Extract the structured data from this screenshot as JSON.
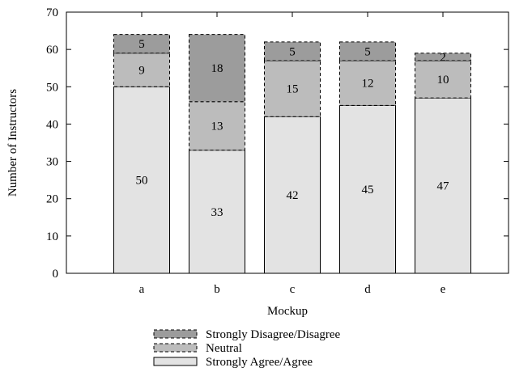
{
  "chart_data": {
    "type": "bar",
    "stacked": true,
    "categories": [
      "a",
      "b",
      "c",
      "d",
      "e"
    ],
    "series": [
      {
        "name": "Strongly Agree/Agree",
        "values": [
          50,
          33,
          42,
          45,
          47
        ],
        "color": "#e3e3e3",
        "border": "solid"
      },
      {
        "name": "Neutral",
        "values": [
          9,
          13,
          15,
          12,
          10
        ],
        "color": "#bcbcbc",
        "border": "dashed"
      },
      {
        "name": "Strongly Disagree/Disagree",
        "values": [
          5,
          18,
          5,
          5,
          2
        ],
        "color": "#9c9c9c",
        "border": "dashed"
      }
    ],
    "xlabel": "Mockup",
    "ylabel": "Number of Instructors",
    "ylim": [
      0,
      70
    ],
    "yticks": [
      0,
      10,
      20,
      30,
      40,
      50,
      60,
      70
    ],
    "grid": false,
    "legend_position": "bottom",
    "legend_order": [
      "Strongly Disagree/Disagree",
      "Neutral",
      "Strongly Agree/Agree"
    ]
  }
}
